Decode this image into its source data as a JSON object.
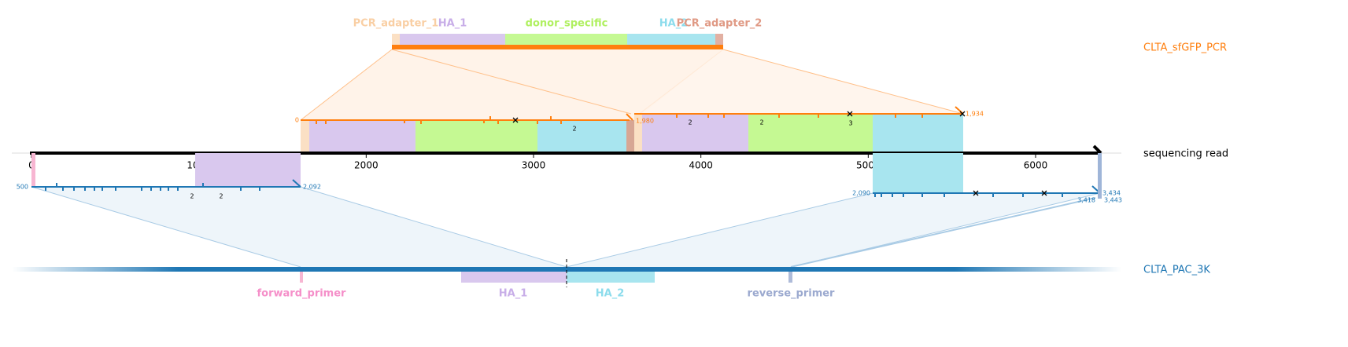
{
  "top_reference": {
    "name": "CLTA_sfGFP_PCR",
    "features": [
      "PCR_adapter_1",
      "HA_1",
      "donor_specific",
      "HA_2",
      "PCR_adapter_2"
    ]
  },
  "read": {
    "name": "sequencing read",
    "ticks": [
      0,
      1000,
      2000,
      3000,
      4000,
      5000,
      6000
    ]
  },
  "bottom_reference": {
    "name": "CLTA_PAC_3K",
    "features": [
      "forward_primer",
      "HA_1",
      "HA_2",
      "reverse_primer"
    ]
  },
  "alignment_ends": [
    "0",
    "1,980",
    "1,934",
    "500",
    "2,092",
    "2,090",
    "3,434",
    "3,418",
    "3,443"
  ],
  "counts": [
    "2",
    "2",
    "2",
    "3",
    "2",
    "2"
  ]
}
